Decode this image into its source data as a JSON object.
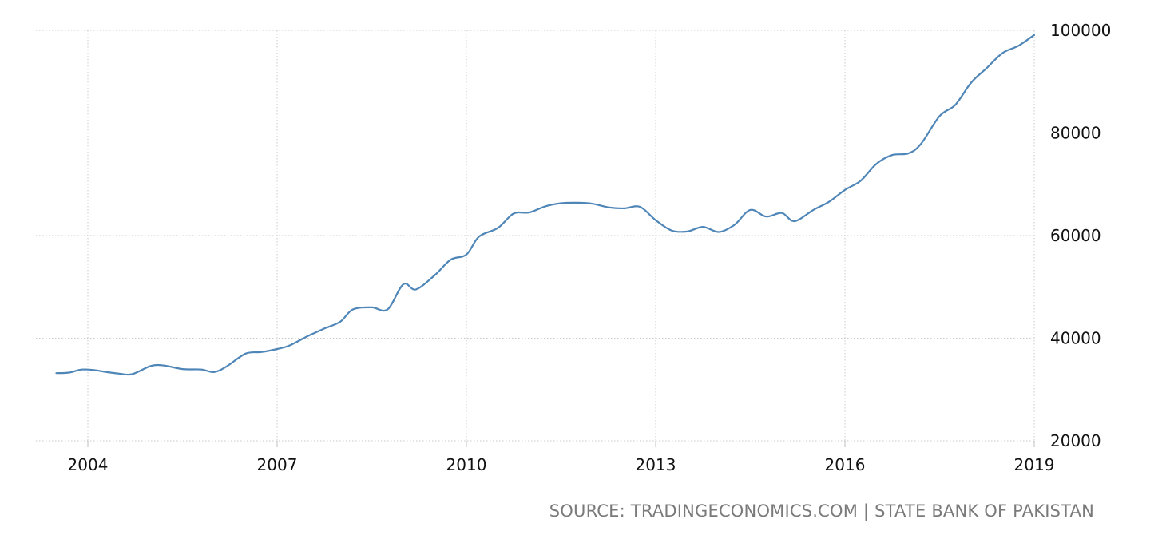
{
  "chart_data": {
    "type": "line",
    "title": "",
    "xlabel": "",
    "ylabel": "",
    "xlim": [
      2003.55,
      2019.0
    ],
    "ylim": [
      20000,
      100000
    ],
    "x_ticks": [
      2004,
      2007,
      2010,
      2013,
      2016,
      2019
    ],
    "x_tick_labels": [
      "2004",
      "2007",
      "2010",
      "2013",
      "2016",
      "2019"
    ],
    "y_ticks": [
      20000,
      40000,
      60000,
      80000,
      100000
    ],
    "y_tick_labels": [
      "20000",
      "40000",
      "60000",
      "80000",
      "100000"
    ],
    "grid": true,
    "y_axis_position": "right",
    "series": [
      {
        "color": "#4f86b8",
        "x": [
          2003.3,
          2003.5,
          2003.7,
          2003.9,
          2004.1,
          2004.3,
          2004.5,
          2004.7,
          2005.0,
          2005.2,
          2005.5,
          2005.8,
          2006.0,
          2006.2,
          2006.5,
          2006.75,
          2007.0,
          2007.2,
          2007.5,
          2007.75,
          2008.0,
          2008.2,
          2008.5,
          2008.75,
          2009.0,
          2009.2,
          2009.5,
          2009.75,
          2010.0,
          2010.2,
          2010.5,
          2010.75,
          2011.0,
          2011.25,
          2011.5,
          2011.75,
          2012.0,
          2012.25,
          2012.5,
          2012.75,
          2013.0,
          2013.25,
          2013.5,
          2013.75,
          2014.0,
          2014.25,
          2014.5,
          2014.75,
          2015.0,
          2015.2,
          2015.5,
          2015.75,
          2016.0,
          2016.25,
          2016.5,
          2016.75,
          2017.0,
          2017.2,
          2017.5,
          2017.75,
          2018.0,
          2018.25,
          2018.5,
          2018.75,
          2019.0
        ],
        "values": [
          33200,
          33200,
          33300,
          33900,
          33800,
          33400,
          33100,
          33000,
          34600,
          34700,
          34000,
          33900,
          33400,
          34500,
          37000,
          37300,
          37900,
          38600,
          40500,
          41900,
          43200,
          45600,
          46000,
          45600,
          50500,
          49500,
          52300,
          55300,
          56300,
          59800,
          61500,
          64300,
          64500,
          65700,
          66300,
          66400,
          66200,
          65500,
          65300,
          65600,
          63000,
          61000,
          60800,
          61700,
          60700,
          62100,
          65000,
          63700,
          64400,
          62800,
          65000,
          66600,
          68900,
          70700,
          74000,
          75700,
          76000,
          77800,
          83300,
          85500,
          89800,
          92700,
          95600,
          97000,
          99100
        ]
      }
    ]
  },
  "source_text": "SOURCE: TRADINGECONOMICS.COM | STATE BANK OF PAKISTAN"
}
